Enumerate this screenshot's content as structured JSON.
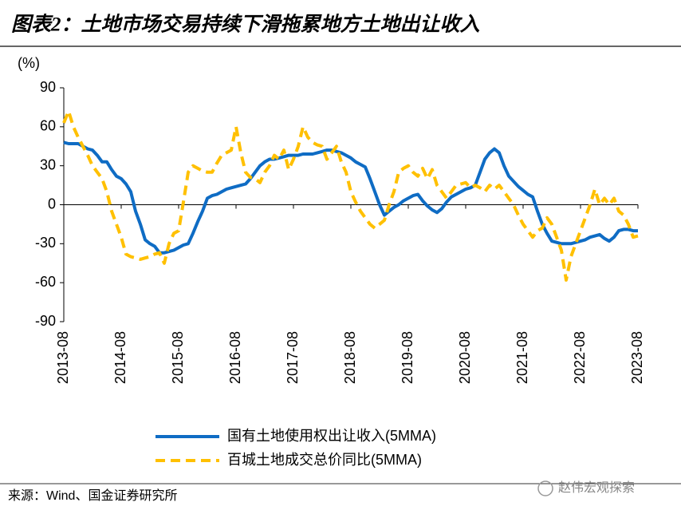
{
  "chart_data": {
    "type": "line",
    "title": "图表2：土地市场交易持续下滑拖累地方土地出让收入",
    "y_label": "(%)",
    "source": "来源：Wind、国金证券研究所",
    "watermark": "赵伟宏观探索",
    "categories": [
      "2013-08",
      null,
      null,
      null,
      null,
      null,
      null,
      null,
      null,
      null,
      null,
      null,
      "2014-08",
      null,
      null,
      null,
      null,
      null,
      null,
      null,
      null,
      null,
      null,
      null,
      "2015-08",
      null,
      null,
      null,
      null,
      null,
      null,
      null,
      null,
      null,
      null,
      null,
      "2016-08",
      null,
      null,
      null,
      null,
      null,
      null,
      null,
      null,
      null,
      null,
      null,
      "2017-08",
      null,
      null,
      null,
      null,
      null,
      null,
      null,
      null,
      null,
      null,
      null,
      "2018-08",
      null,
      null,
      null,
      null,
      null,
      null,
      null,
      null,
      null,
      null,
      null,
      "2019-08",
      null,
      null,
      null,
      null,
      null,
      null,
      null,
      null,
      null,
      null,
      null,
      "2020-08",
      null,
      null,
      null,
      null,
      null,
      null,
      null,
      null,
      null,
      null,
      null,
      "2021-08",
      null,
      null,
      null,
      null,
      null,
      null,
      null,
      null,
      null,
      null,
      null,
      "2022-08",
      null,
      null,
      null,
      null,
      null,
      null,
      null,
      null,
      null,
      null,
      null,
      "2023-08"
    ],
    "series": [
      {
        "name": "国有土地使用权出让收入(5MMA)",
        "color": "#0f6cc4",
        "dash": false,
        "values": [
          48,
          47,
          47,
          47,
          45,
          43,
          42,
          38,
          33,
          33,
          27,
          22,
          20,
          16,
          10,
          -5,
          -15,
          -27,
          -30,
          -32,
          -37,
          -37,
          -36,
          -35,
          -33,
          -31,
          -30,
          -22,
          -13,
          -5,
          5,
          7,
          8,
          10,
          12,
          13,
          14,
          15,
          16,
          20,
          25,
          30,
          33,
          35,
          35,
          36,
          37,
          38,
          38,
          38,
          39,
          39,
          39,
          40,
          41,
          42,
          42,
          41,
          40,
          38,
          36,
          33,
          31,
          29,
          20,
          10,
          0,
          -8,
          -5,
          -2,
          0,
          3,
          5,
          7,
          8,
          3,
          -1,
          -4,
          -6,
          -3,
          2,
          6,
          8,
          10,
          12,
          13,
          15,
          25,
          35,
          40,
          43,
          40,
          30,
          22,
          18,
          14,
          11,
          8,
          6,
          -5,
          -15,
          -22,
          -28,
          -29,
          -30,
          -30,
          -30,
          -29,
          -28,
          -27,
          -25,
          -24,
          -23,
          -26,
          -28,
          -25,
          -20,
          -19,
          -19,
          -20,
          -20
        ]
      },
      {
        "name": "百城土地成交总价同比(5MMA)",
        "color": "#ffc000",
        "dash": true,
        "values": [
          63,
          72,
          60,
          52,
          45,
          38,
          30,
          25,
          20,
          10,
          -5,
          -15,
          -25,
          -38,
          -40,
          -41,
          -42,
          -41,
          -40,
          -38,
          -37,
          -45,
          -30,
          -22,
          -20,
          2,
          25,
          30,
          28,
          26,
          25,
          25,
          32,
          38,
          40,
          42,
          60,
          40,
          25,
          21,
          20,
          17,
          25,
          30,
          38,
          35,
          42,
          27,
          35,
          45,
          60,
          52,
          48,
          46,
          45,
          35,
          40,
          45,
          33,
          25,
          10,
          2,
          -5,
          -10,
          -15,
          -18,
          -15,
          -12,
          0,
          10,
          25,
          28,
          30,
          25,
          22,
          28,
          20,
          27,
          15,
          10,
          5,
          10,
          15,
          16,
          17,
          13,
          15,
          13,
          10,
          15,
          12,
          15,
          10,
          5,
          0,
          -8,
          -15,
          -20,
          -25,
          -20,
          -18,
          -10,
          -15,
          -25,
          -35,
          -58,
          -40,
          -30,
          -20,
          -10,
          0,
          12,
          0,
          5,
          0,
          5,
          -5,
          -8,
          -15,
          -25,
          -24
        ]
      }
    ],
    "ylim": [
      -90,
      90
    ],
    "yticks": [
      -90,
      -60,
      -30,
      0,
      30,
      60,
      90
    ]
  }
}
